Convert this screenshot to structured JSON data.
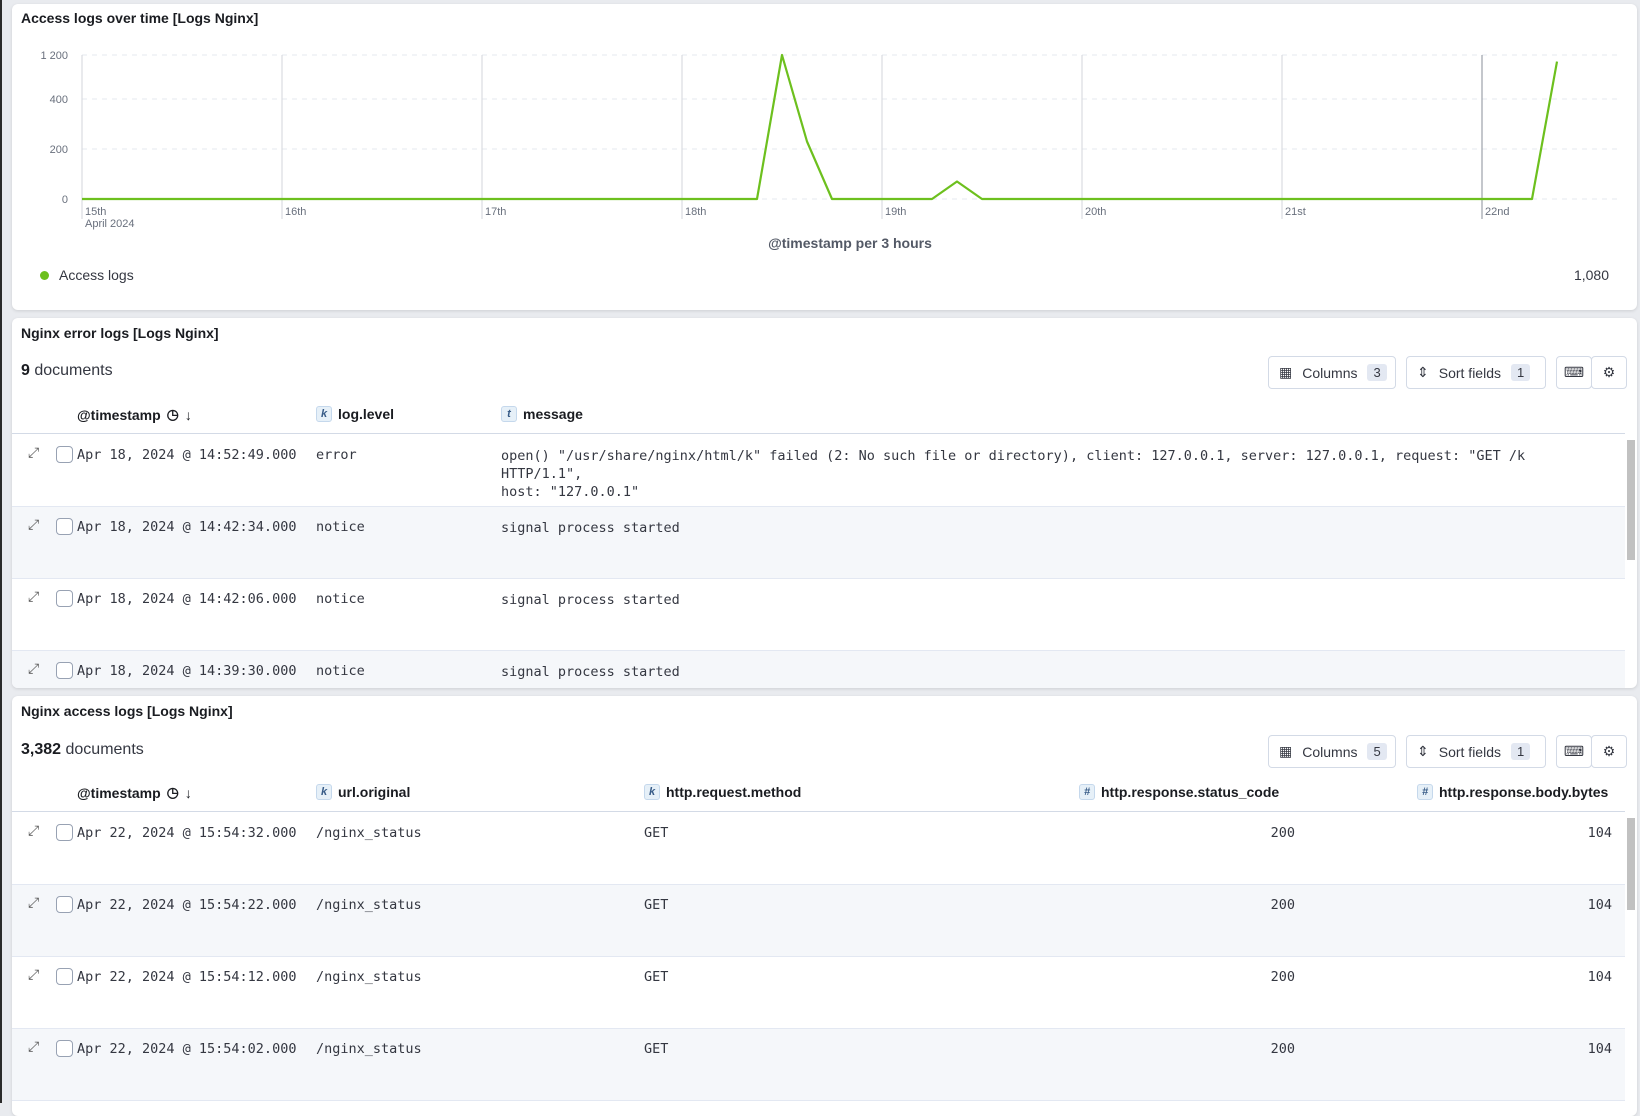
{
  "chart_panel": {
    "title": "Access logs over time [Logs Nginx]",
    "legend_label": "Access logs",
    "legend_value": "1,080"
  },
  "chart_data": {
    "type": "line",
    "title": "Access logs over time [Logs Nginx]",
    "xlabel": "@timestamp per 3 hours",
    "ylabel": "",
    "x_ticks": [
      "15th",
      "16th",
      "17th",
      "18th",
      "19th",
      "20th",
      "21st",
      "22nd"
    ],
    "x_sublabel": "April 2024",
    "y_ticks": [
      0,
      200,
      400,
      1200
    ],
    "y_tick_labels": [
      "0",
      "200",
      "400",
      "1 200"
    ],
    "grid": true,
    "legend_position": "bottom-left",
    "color": "#6dc01e",
    "series": [
      {
        "name": "Access logs",
        "points": [
          [
            "Apr 15 00:00",
            0
          ],
          [
            "Apr 15 03:00",
            0
          ],
          [
            "Apr 15 06:00",
            0
          ],
          [
            "Apr 15 09:00",
            0
          ],
          [
            "Apr 15 12:00",
            0
          ],
          [
            "Apr 15 15:00",
            0
          ],
          [
            "Apr 15 18:00",
            0
          ],
          [
            "Apr 15 21:00",
            0
          ],
          [
            "Apr 16 00:00",
            0
          ],
          [
            "Apr 16 03:00",
            0
          ],
          [
            "Apr 16 06:00",
            0
          ],
          [
            "Apr 16 09:00",
            0
          ],
          [
            "Apr 16 12:00",
            0
          ],
          [
            "Apr 16 15:00",
            0
          ],
          [
            "Apr 16 18:00",
            0
          ],
          [
            "Apr 16 21:00",
            0
          ],
          [
            "Apr 17 00:00",
            0
          ],
          [
            "Apr 17 03:00",
            0
          ],
          [
            "Apr 17 06:00",
            0
          ],
          [
            "Apr 17 09:00",
            0
          ],
          [
            "Apr 17 12:00",
            0
          ],
          [
            "Apr 17 15:00",
            0
          ],
          [
            "Apr 17 18:00",
            0
          ],
          [
            "Apr 17 21:00",
            0
          ],
          [
            "Apr 18 00:00",
            0
          ],
          [
            "Apr 18 03:00",
            0
          ],
          [
            "Apr 18 06:00",
            0
          ],
          [
            "Apr 18 09:00",
            0
          ],
          [
            "Apr 18 12:00",
            1250
          ],
          [
            "Apr 18 15:00",
            230
          ],
          [
            "Apr 18 18:00",
            0
          ],
          [
            "Apr 18 21:00",
            0
          ],
          [
            "Apr 19 00:00",
            0
          ],
          [
            "Apr 19 03:00",
            0
          ],
          [
            "Apr 19 06:00",
            0
          ],
          [
            "Apr 19 09:00",
            70
          ],
          [
            "Apr 19 12:00",
            0
          ],
          [
            "Apr 19 15:00",
            0
          ],
          [
            "Apr 19 18:00",
            0
          ],
          [
            "Apr 19 21:00",
            0
          ],
          [
            "Apr 20 00:00",
            0
          ],
          [
            "Apr 20 03:00",
            0
          ],
          [
            "Apr 20 06:00",
            0
          ],
          [
            "Apr 20 09:00",
            0
          ],
          [
            "Apr 20 12:00",
            0
          ],
          [
            "Apr 20 15:00",
            0
          ],
          [
            "Apr 20 18:00",
            0
          ],
          [
            "Apr 20 21:00",
            0
          ],
          [
            "Apr 21 00:00",
            0
          ],
          [
            "Apr 21 03:00",
            0
          ],
          [
            "Apr 21 06:00",
            0
          ],
          [
            "Apr 21 09:00",
            0
          ],
          [
            "Apr 21 12:00",
            0
          ],
          [
            "Apr 21 15:00",
            0
          ],
          [
            "Apr 21 18:00",
            0
          ],
          [
            "Apr 21 21:00",
            0
          ],
          [
            "Apr 22 00:00",
            0
          ],
          [
            "Apr 22 03:00",
            0
          ],
          [
            "Apr 22 06:00",
            0
          ],
          [
            "Apr 22 09:00",
            1080
          ]
        ]
      }
    ]
  },
  "error_panel": {
    "title": "Nginx error logs [Logs Nginx]",
    "doc_count": "9",
    "doc_label": "documents",
    "columns_label": "Columns",
    "columns_count": "3",
    "sort_label": "Sort fields",
    "sort_count": "1",
    "headers": [
      {
        "label": "@timestamp"
      },
      {
        "label": "log.level",
        "type": "k"
      },
      {
        "label": "message",
        "type": "t"
      }
    ],
    "rows": [
      {
        "timestamp": "Apr 18, 2024 @ 14:52:49.000",
        "level": "error",
        "message": "open() \"/usr/share/nginx/html/k\" failed (2: No such file or directory), client: 127.0.0.1, server: 127.0.0.1, request: \"GET /k HTTP/1.1\",\nhost: \"127.0.0.1\""
      },
      {
        "timestamp": "Apr 18, 2024 @ 14:42:34.000",
        "level": "notice",
        "message": "signal process started"
      },
      {
        "timestamp": "Apr 18, 2024 @ 14:42:06.000",
        "level": "notice",
        "message": "signal process started"
      },
      {
        "timestamp": "Apr 18, 2024 @ 14:39:30.000",
        "level": "notice",
        "message": "signal process started"
      }
    ]
  },
  "access_panel": {
    "title": "Nginx access logs [Logs Nginx]",
    "doc_count": "3,382",
    "doc_label": "documents",
    "columns_label": "Columns",
    "columns_count": "5",
    "sort_label": "Sort fields",
    "sort_count": "1",
    "headers": [
      {
        "label": "@timestamp"
      },
      {
        "label": "url.original",
        "type": "k"
      },
      {
        "label": "http.request.method",
        "type": "k"
      },
      {
        "label": "http.response.status_code",
        "type": "#"
      },
      {
        "label": "http.response.body.bytes",
        "type": "#"
      }
    ],
    "rows": [
      {
        "timestamp": "Apr 22, 2024 @ 15:54:32.000",
        "url": "/nginx_status",
        "method": "GET",
        "status": "200",
        "bytes": "104"
      },
      {
        "timestamp": "Apr 22, 2024 @ 15:54:22.000",
        "url": "/nginx_status",
        "method": "GET",
        "status": "200",
        "bytes": "104"
      },
      {
        "timestamp": "Apr 22, 2024 @ 15:54:12.000",
        "url": "/nginx_status",
        "method": "GET",
        "status": "200",
        "bytes": "104"
      },
      {
        "timestamp": "Apr 22, 2024 @ 15:54:02.000",
        "url": "/nginx_status",
        "method": "GET",
        "status": "200",
        "bytes": "104"
      }
    ]
  }
}
